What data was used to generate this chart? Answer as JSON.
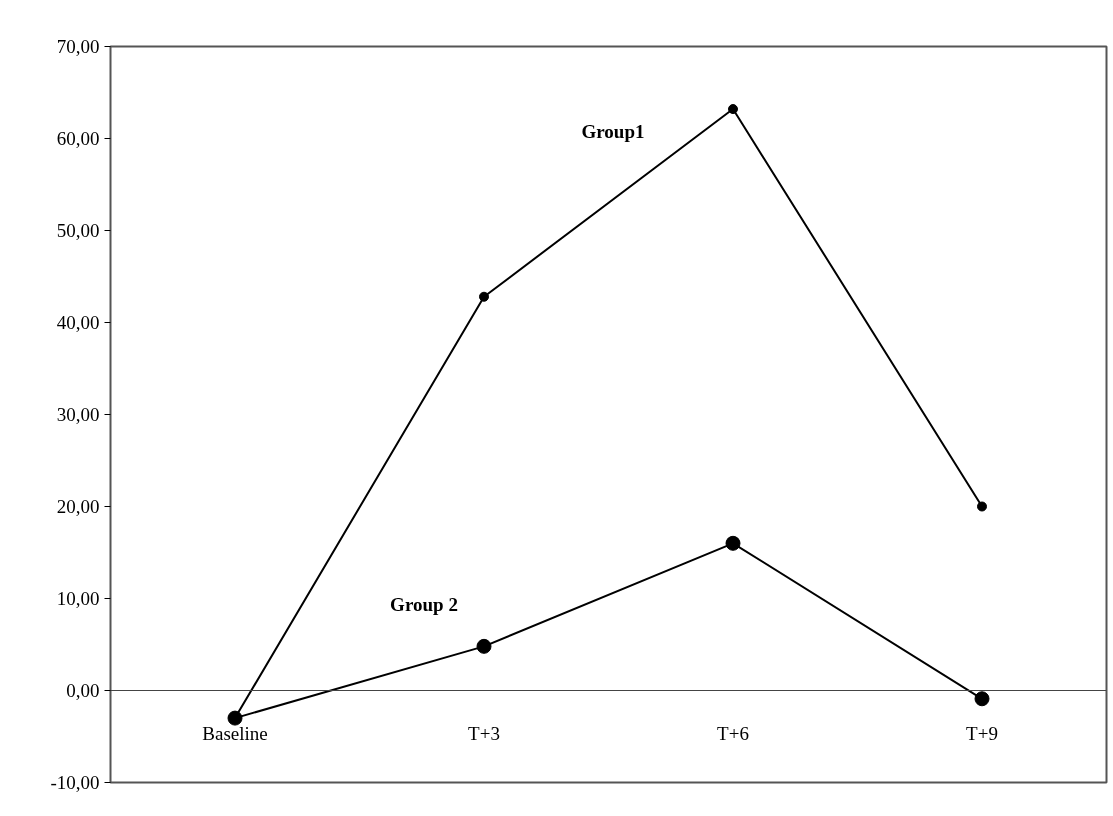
{
  "chart_data": {
    "type": "line",
    "categories": [
      "Baseline",
      "T+3",
      "T+6",
      "T+9"
    ],
    "series": [
      {
        "name": "Group1",
        "color": "#000000",
        "values": [
          -3.0,
          42.8,
          63.2,
          20.0
        ]
      },
      {
        "name": "Group 2",
        "color": "#000000",
        "values": [
          -3.0,
          4.8,
          16.0,
          -0.9
        ]
      }
    ],
    "ylim": [
      -10,
      70
    ],
    "yticks": [
      {
        "value": -10,
        "label": "-10,00"
      },
      {
        "value": 0,
        "label": "0,00"
      },
      {
        "value": 10,
        "label": "10,00"
      },
      {
        "value": 20,
        "label": "20,00"
      },
      {
        "value": 30,
        "label": "30,00"
      },
      {
        "value": 40,
        "label": "40,00"
      },
      {
        "value": 50,
        "label": "50,00"
      },
      {
        "value": 60,
        "label": "60,00"
      },
      {
        "value": 70,
        "label": "70,00"
      }
    ],
    "grid": false,
    "marker": "circle",
    "line_style": "solid"
  }
}
